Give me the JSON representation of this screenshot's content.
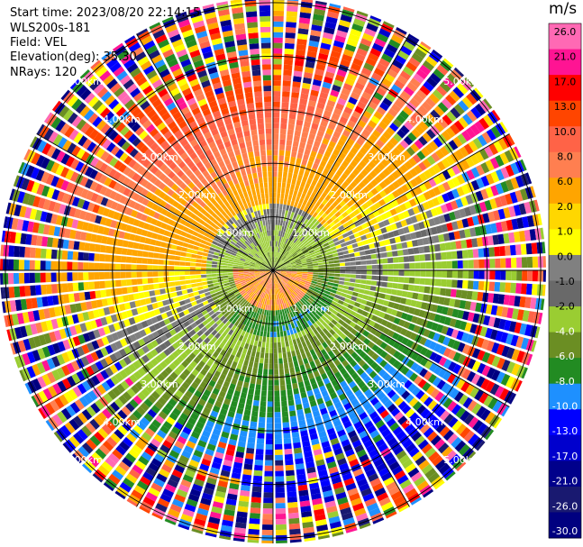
{
  "header": {
    "start_time": "Start time: 2023/08/20 22:14:15",
    "instrument": "WLS200s-181",
    "field": "Field: VEL",
    "elevation": "Elevation(deg): 35.30",
    "nrays": "NRays: 120"
  },
  "chart_data": {
    "type": "heatmap",
    "projection": "polar-ppi",
    "range_ring_labels": [
      "1.00km",
      "2.00km",
      "3.00km",
      "4.00km",
      "5.00km"
    ],
    "range_rings_km": [
      1,
      2,
      3,
      4,
      5
    ],
    "range_max_km": 5.1,
    "n_rays": 120,
    "colorbar": {
      "title": "m/s",
      "ticks": [
        "26.0",
        "21.0",
        "17.0",
        "13.0",
        "10.0",
        "8.0",
        "6.0",
        "2.0",
        "1.0",
        "0.0",
        "-1.0",
        "-2.0",
        "-4.0",
        "-6.0",
        "-8.0",
        "-10.0",
        "-13.0",
        "-17.0",
        "-21.0",
        "-26.0",
        "-30.0"
      ],
      "colors": [
        "#ff69b4",
        "#ff1493",
        "#ff0000",
        "#ff4500",
        "#ff6347",
        "#ff7f50",
        "#ffa500",
        "#ffd700",
        "#ffff00",
        "#808080",
        "#696969",
        "#9acd32",
        "#6b8e23",
        "#228b22",
        "#1e90ff",
        "#0000ff",
        "#0000cd",
        "#00008b",
        "#191970",
        "#000080"
      ]
    },
    "colors": {
      "ring": "#000000",
      "spoke": "#000000"
    }
  }
}
